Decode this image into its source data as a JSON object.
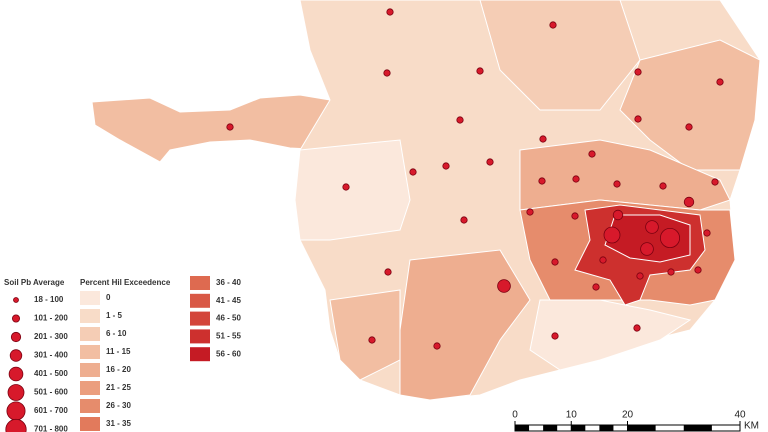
{
  "legend": {
    "soil_title": "Soil Pb Average",
    "soil_classes": [
      "18 - 100",
      "101 - 200",
      "201 - 300",
      "301 - 400",
      "401 - 500",
      "501 - 600",
      "601 - 700",
      "701 - 800"
    ],
    "hil_title": "Percent Hil Exceedence",
    "hil_classes": [
      "0",
      "1 - 5",
      "6 - 10",
      "11 - 15",
      "16 - 20",
      "21 - 25",
      "26 - 30",
      "31 - 35",
      "36 - 40",
      "41 - 45",
      "46 - 50",
      "51 - 55",
      "56 - 60"
    ],
    "hil_colors": [
      "#fbe8dc",
      "#f8dcc8",
      "#f5cdb5",
      "#f2bea2",
      "#eeae90",
      "#eb9e7e",
      "#e68c6c",
      "#e27a5c",
      "#de6a50",
      "#d95845",
      "#d3453a",
      "#cd302e",
      "#c51b24"
    ],
    "marker_color": "#d7192b"
  },
  "scale_bar": {
    "ticks": [
      0,
      10,
      20,
      40
    ],
    "unit": "KM"
  }
}
